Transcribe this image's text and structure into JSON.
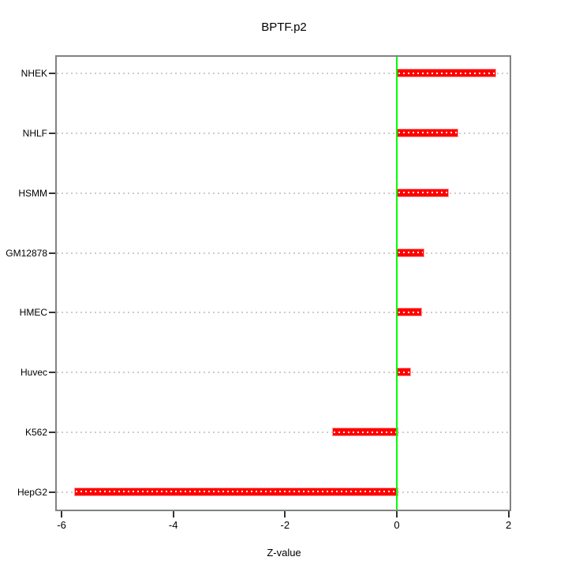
{
  "chart_data": {
    "type": "bar",
    "orientation": "horizontal",
    "title": "BPTF.p2",
    "xlabel": "Z-value",
    "ylabel": "",
    "categories": [
      "NHEK",
      "NHLF",
      "HSMM",
      "GM12878",
      "HMEC",
      "Huvec",
      "K562",
      "HepG2"
    ],
    "values": [
      1.75,
      1.08,
      0.9,
      0.47,
      0.42,
      0.22,
      -1.16,
      -5.78
    ],
    "xticks": [
      -6,
      -4,
      -2,
      0,
      2
    ],
    "xlim": [
      -6.09,
      2.05
    ],
    "zero_reference_line": 0,
    "grid": "dotted horizontal lines at each category",
    "legend": "none",
    "colors": {
      "bar_fill": "#ff0000",
      "bar_edge": "#ffa0a0",
      "zero_line": "#00ff00",
      "gridline": "#cccccc",
      "frame": "#828282",
      "tick": "#333333",
      "text": "#000000",
      "background": "#ffffff"
    }
  }
}
